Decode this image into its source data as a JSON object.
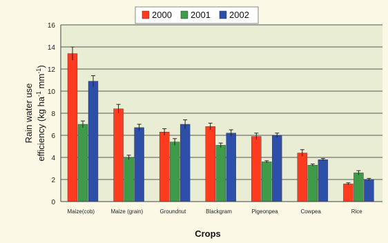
{
  "chart_data": {
    "type": "bar",
    "xlabel": "Crops",
    "ylabel": "Rain water use efficiency (kg ha⁻¹ mm⁻¹)",
    "ylabel_lines": [
      "Rain water use",
      "efficiency (kg ha",
      "-1",
      " mm",
      "-1",
      ")"
    ],
    "ylim": [
      0,
      16
    ],
    "yticks": [
      0,
      2,
      4,
      6,
      8,
      10,
      12,
      14,
      16
    ],
    "grid": true,
    "legend_position": "top",
    "categories": [
      "Maize(cob)",
      "Maize (grain)",
      "Groundnut",
      "Blackgram",
      "Pigeonpea",
      "Cowpea",
      "Rice"
    ],
    "series": [
      {
        "name": "2000",
        "color": "#ff3b1f",
        "values": [
          13.4,
          8.4,
          6.3,
          6.8,
          5.9,
          4.4,
          1.6
        ],
        "errors": [
          0.6,
          0.4,
          0.3,
          0.3,
          0.3,
          0.3,
          0.1
        ]
      },
      {
        "name": "2001",
        "color": "#3f9a4a",
        "values": [
          7.0,
          4.0,
          5.4,
          5.1,
          3.6,
          3.3,
          2.6
        ],
        "errors": [
          0.3,
          0.2,
          0.3,
          0.2,
          0.1,
          0.1,
          0.2
        ]
      },
      {
        "name": "2002",
        "color": "#2e4fa8",
        "values": [
          10.9,
          6.7,
          7.0,
          6.2,
          6.0,
          3.8,
          2.0
        ],
        "errors": [
          0.5,
          0.3,
          0.4,
          0.3,
          0.2,
          0.1,
          0.1
        ]
      }
    ]
  }
}
